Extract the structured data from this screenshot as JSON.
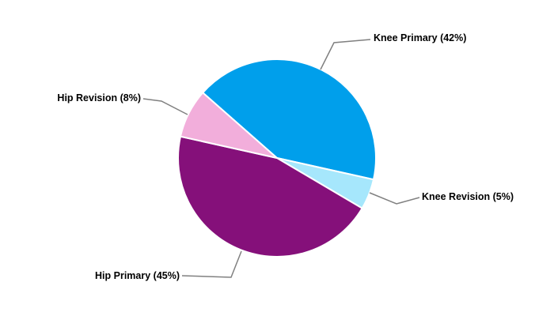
{
  "chart_data": {
    "type": "pie",
    "title": "",
    "start_category": "Knee Primary",
    "direction": "clockwise",
    "legend": "none",
    "slices": [
      {
        "label": "Knee Primary (42%)",
        "category": "Knee Primary",
        "value": 42,
        "color": "#009FEB"
      },
      {
        "label": "Knee Revision (5%)",
        "category": "Knee Revision",
        "value": 5,
        "color": "#A6E7FC"
      },
      {
        "label": "Hip Primary (45%)",
        "category": "Hip Primary",
        "value": 45,
        "color": "#85107A"
      },
      {
        "label": "Hip Revision (8%)",
        "category": "Hip Revision",
        "value": 8,
        "color": "#F2AEDB"
      }
    ]
  }
}
